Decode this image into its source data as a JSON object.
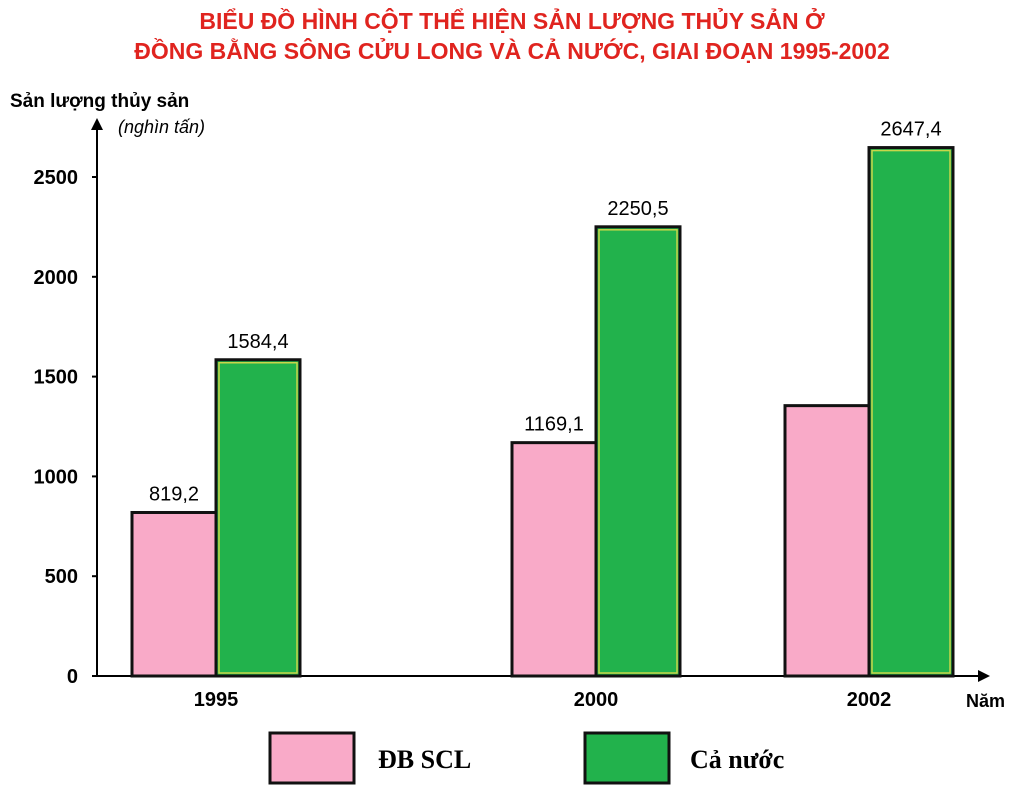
{
  "chart_data": {
    "type": "bar",
    "title_line1": "BIỂU ĐỒ HÌNH CỘT THỂ HIỆN SẢN LƯỢNG THỦY SẢN Ở",
    "title_line2": "ĐỒNG BẰNG SÔNG CỬU LONG VÀ CẢ NƯỚC, GIAI ĐOẠN 1995-2002",
    "ylabel": "Sản lượng thủy sản",
    "yunit": "(nghìn tấn)",
    "xlabel": "Năm",
    "categories": [
      "1995",
      "2000",
      "2002"
    ],
    "ylim": [
      0,
      2700
    ],
    "yticks": [
      0,
      500,
      1000,
      1500,
      2000,
      2500
    ],
    "grid": false,
    "legend_position": "bottom",
    "series": [
      {
        "name": "ĐB SCL",
        "color": "#f9aac8",
        "values": [
          819.2,
          1169.1,
          1354.5
        ],
        "labels": [
          "819,2",
          "1169,1",
          ""
        ]
      },
      {
        "name": "Cả nước",
        "color": "#22b24c",
        "values": [
          1584.4,
          2250.5,
          2647.4
        ],
        "labels": [
          "1584,4",
          "2250,5",
          "2647,4"
        ]
      }
    ]
  }
}
